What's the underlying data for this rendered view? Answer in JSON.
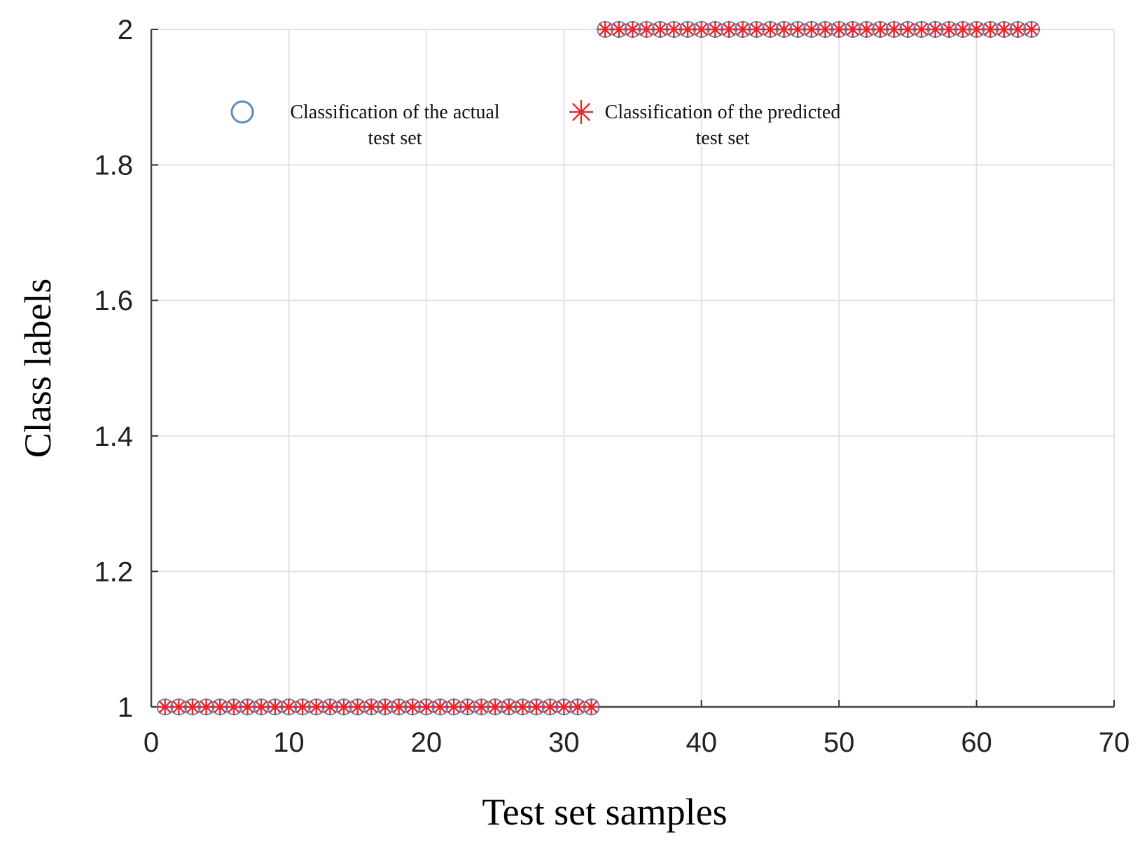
{
  "chart_data": {
    "type": "scatter",
    "title": "",
    "xlabel": "Test set samples",
    "ylabel": "Class labels",
    "xlim": [
      0,
      70
    ],
    "ylim": [
      1,
      2
    ],
    "xticks": [
      "0",
      "10",
      "20",
      "30",
      "40",
      "50",
      "60",
      "70"
    ],
    "yticks": [
      "1",
      "1.2",
      "1.4",
      "1.6",
      "1.8",
      "2"
    ],
    "grid": true,
    "legend_position": "top",
    "series": [
      {
        "name": "Classification of the actual test set",
        "name_lines": [
          "Classification of the actual",
          "test set"
        ],
        "marker": "circle",
        "color": "#5b8db8",
        "x": [
          1,
          2,
          3,
          4,
          5,
          6,
          7,
          8,
          9,
          10,
          11,
          12,
          13,
          14,
          15,
          16,
          17,
          18,
          19,
          20,
          21,
          22,
          23,
          24,
          25,
          26,
          27,
          28,
          29,
          30,
          31,
          32,
          33,
          34,
          35,
          36,
          37,
          38,
          39,
          40,
          41,
          42,
          43,
          44,
          45,
          46,
          47,
          48,
          49,
          50,
          51,
          52,
          53,
          54,
          55,
          56,
          57,
          58,
          59,
          60,
          61,
          62,
          63,
          64
        ],
        "y": [
          1,
          1,
          1,
          1,
          1,
          1,
          1,
          1,
          1,
          1,
          1,
          1,
          1,
          1,
          1,
          1,
          1,
          1,
          1,
          1,
          1,
          1,
          1,
          1,
          1,
          1,
          1,
          1,
          1,
          1,
          1,
          1,
          2,
          2,
          2,
          2,
          2,
          2,
          2,
          2,
          2,
          2,
          2,
          2,
          2,
          2,
          2,
          2,
          2,
          2,
          2,
          2,
          2,
          2,
          2,
          2,
          2,
          2,
          2,
          2,
          2,
          2,
          2,
          2
        ]
      },
      {
        "name": "Classification of the predicted test set",
        "name_lines": [
          "Classification of the predicted",
          "test set"
        ],
        "marker": "asterisk",
        "color": "#e8262c",
        "x": [
          1,
          2,
          3,
          4,
          5,
          6,
          7,
          8,
          9,
          10,
          11,
          12,
          13,
          14,
          15,
          16,
          17,
          18,
          19,
          20,
          21,
          22,
          23,
          24,
          25,
          26,
          27,
          28,
          29,
          30,
          31,
          32,
          33,
          34,
          35,
          36,
          37,
          38,
          39,
          40,
          41,
          42,
          43,
          44,
          45,
          46,
          47,
          48,
          49,
          50,
          51,
          52,
          53,
          54,
          55,
          56,
          57,
          58,
          59,
          60,
          61,
          62,
          63,
          64
        ],
        "y": [
          1,
          1,
          1,
          1,
          1,
          1,
          1,
          1,
          1,
          1,
          1,
          1,
          1,
          1,
          1,
          1,
          1,
          1,
          1,
          1,
          1,
          1,
          1,
          1,
          1,
          1,
          1,
          1,
          1,
          1,
          1,
          1,
          2,
          2,
          2,
          2,
          2,
          2,
          2,
          2,
          2,
          2,
          2,
          2,
          2,
          2,
          2,
          2,
          2,
          2,
          2,
          2,
          2,
          2,
          2,
          2,
          2,
          2,
          2,
          2,
          2,
          2,
          2,
          2
        ]
      }
    ]
  }
}
